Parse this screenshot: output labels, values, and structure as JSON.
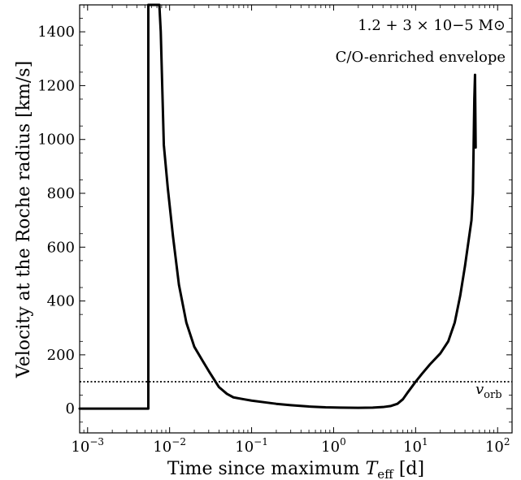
{
  "chart_data": {
    "type": "line",
    "title": "",
    "xlabel": "Time since maximum T_eff [d]",
    "ylabel": "Velocity at the Roche radius [km/s]",
    "xscale": "log",
    "xlim": [
      0.0008,
      150
    ],
    "ylim": [
      -90,
      1500
    ],
    "grid": false,
    "legend": "none",
    "xticks": [
      {
        "value": 0.001,
        "base": "10",
        "exp": "−3"
      },
      {
        "value": 0.01,
        "base": "10",
        "exp": "−2"
      },
      {
        "value": 0.1,
        "base": "10",
        "exp": "−1"
      },
      {
        "value": 1,
        "base": "10",
        "exp": "0"
      },
      {
        "value": 10,
        "base": "10",
        "exp": "1"
      },
      {
        "value": 100,
        "base": "10",
        "exp": "2"
      }
    ],
    "yticks": [
      0,
      200,
      400,
      600,
      800,
      1000,
      1200,
      1400
    ],
    "annotations": {
      "model_mass": "1.2 + 3 × 10−5 M⊙",
      "model_envelope": "C/O-enriched envelope",
      "v_orb_label": "v_orb"
    },
    "reference_lines": [
      {
        "name": "v_orb",
        "y": 100,
        "style": "dotted"
      }
    ],
    "series": [
      {
        "x": [
          0.0008,
          0.0055,
          0.0055,
          0.0056,
          0.0073,
          0.0075,
          0.0078,
          0.0085,
          0.0095,
          0.011,
          0.013,
          0.016,
          0.02,
          0.025,
          0.03,
          0.04,
          0.05,
          0.06,
          0.08,
          0.1,
          0.15,
          0.2,
          0.3,
          0.5,
          0.8,
          1.2,
          2,
          3,
          4,
          5,
          6,
          7,
          8,
          10,
          12,
          15,
          20,
          25,
          30,
          35,
          40,
          45,
          48,
          50,
          51,
          52,
          53,
          54
        ],
        "y": [
          0,
          0,
          1500,
          1500,
          1500,
          1500,
          1400,
          980,
          820,
          640,
          460,
          320,
          230,
          180,
          140,
          80,
          55,
          42,
          35,
          30,
          23,
          18,
          13,
          8,
          5,
          4,
          3,
          4,
          6,
          10,
          18,
          35,
          60,
          100,
          130,
          165,
          205,
          250,
          320,
          420,
          530,
          640,
          700,
          800,
          980,
          1150,
          1240,
          970
        ],
        "color": "#000000"
      }
    ]
  }
}
